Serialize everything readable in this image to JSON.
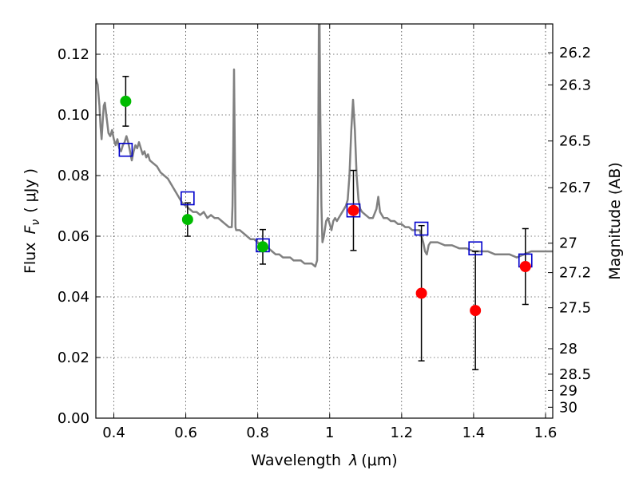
{
  "chart_data": {
    "type": "scatter",
    "xlabel_text": "Wavelength",
    "xlabel_symbol": "λ",
    "xlabel_unit": "(μm)",
    "ylabel_text": "Flux",
    "ylabel_symbol": "F",
    "ylabel_subscript": "ν",
    "ylabel_unit": "( μJy )",
    "y2label": "Magnitude (AB)",
    "xlim": [
      0.35,
      1.62
    ],
    "ylim": [
      0.0,
      0.13
    ],
    "grid": true,
    "x_ticks": [
      0.4,
      0.6,
      0.8,
      1.0,
      1.2,
      1.4,
      1.6
    ],
    "x_tick_labels": [
      "0.4",
      "0.6",
      "0.8",
      "1",
      "1.2",
      "1.4",
      "1.6"
    ],
    "y_ticks": [
      0.0,
      0.02,
      0.04,
      0.06,
      0.08,
      0.1,
      0.12
    ],
    "y_tick_labels": [
      "0.00",
      "0.02",
      "0.04",
      "0.06",
      "0.08",
      "0.10",
      "0.12"
    ],
    "y2_ticks": [
      {
        "label": "26.2",
        "flux": 0.1205
      },
      {
        "label": "26.3",
        "flux": 0.1099
      },
      {
        "label": "26.5",
        "flux": 0.0914
      },
      {
        "label": "26.7",
        "flux": 0.076
      },
      {
        "label": "27",
        "flux": 0.0577
      },
      {
        "label": "27.2",
        "flux": 0.048
      },
      {
        "label": "27.5",
        "flux": 0.0364
      },
      {
        "label": "28",
        "flux": 0.0229
      },
      {
        "label": "28.5",
        "flux": 0.0145
      },
      {
        "label": "29",
        "flux": 0.0091
      },
      {
        "label": "30",
        "flux": 0.0036
      }
    ],
    "colors": {
      "spectrum": "#808080",
      "green_points": "#00bb00",
      "red_points": "#ff0000",
      "model_squares": "#0000cc",
      "errorbars": "#000000"
    },
    "series": [
      {
        "kind": "line",
        "points": [
          [
            0.35,
            0.112
          ],
          [
            0.355,
            0.11
          ],
          [
            0.36,
            0.103
          ],
          [
            0.363,
            0.096
          ],
          [
            0.366,
            0.092
          ],
          [
            0.369,
            0.098
          ],
          [
            0.372,
            0.103
          ],
          [
            0.375,
            0.104
          ],
          [
            0.378,
            0.101
          ],
          [
            0.381,
            0.098
          ],
          [
            0.385,
            0.094
          ],
          [
            0.39,
            0.093
          ],
          [
            0.395,
            0.095
          ],
          [
            0.4,
            0.092
          ],
          [
            0.405,
            0.09
          ],
          [
            0.41,
            0.092
          ],
          [
            0.415,
            0.089
          ],
          [
            0.42,
            0.088
          ],
          [
            0.425,
            0.09
          ],
          [
            0.43,
            0.091
          ],
          [
            0.435,
            0.093
          ],
          [
            0.44,
            0.091
          ],
          [
            0.445,
            0.088
          ],
          [
            0.45,
            0.085
          ],
          [
            0.455,
            0.088
          ],
          [
            0.46,
            0.09
          ],
          [
            0.465,
            0.089
          ],
          [
            0.47,
            0.091
          ],
          [
            0.475,
            0.089
          ],
          [
            0.48,
            0.087
          ],
          [
            0.485,
            0.088
          ],
          [
            0.49,
            0.086
          ],
          [
            0.495,
            0.087
          ],
          [
            0.5,
            0.085
          ],
          [
            0.51,
            0.084
          ],
          [
            0.52,
            0.083
          ],
          [
            0.53,
            0.081
          ],
          [
            0.54,
            0.08
          ],
          [
            0.55,
            0.079
          ],
          [
            0.56,
            0.077
          ],
          [
            0.57,
            0.075
          ],
          [
            0.58,
            0.073
          ],
          [
            0.59,
            0.071
          ],
          [
            0.6,
            0.07
          ],
          [
            0.61,
            0.069
          ],
          [
            0.62,
            0.068
          ],
          [
            0.63,
            0.068
          ],
          [
            0.64,
            0.067
          ],
          [
            0.65,
            0.068
          ],
          [
            0.66,
            0.066
          ],
          [
            0.67,
            0.067
          ],
          [
            0.68,
            0.066
          ],
          [
            0.69,
            0.066
          ],
          [
            0.7,
            0.065
          ],
          [
            0.71,
            0.064
          ],
          [
            0.72,
            0.063
          ],
          [
            0.728,
            0.063
          ],
          [
            0.73,
            0.07
          ],
          [
            0.732,
            0.09
          ],
          [
            0.734,
            0.115
          ],
          [
            0.736,
            0.09
          ],
          [
            0.738,
            0.063
          ],
          [
            0.74,
            0.062
          ],
          [
            0.75,
            0.062
          ],
          [
            0.76,
            0.061
          ],
          [
            0.77,
            0.06
          ],
          [
            0.78,
            0.059
          ],
          [
            0.79,
            0.059
          ],
          [
            0.8,
            0.058
          ],
          [
            0.81,
            0.057
          ],
          [
            0.82,
            0.057
          ],
          [
            0.83,
            0.056
          ],
          [
            0.84,
            0.055
          ],
          [
            0.85,
            0.054
          ],
          [
            0.86,
            0.054
          ],
          [
            0.87,
            0.053
          ],
          [
            0.88,
            0.053
          ],
          [
            0.89,
            0.053
          ],
          [
            0.9,
            0.052
          ],
          [
            0.91,
            0.052
          ],
          [
            0.92,
            0.052
          ],
          [
            0.93,
            0.051
          ],
          [
            0.94,
            0.051
          ],
          [
            0.95,
            0.051
          ],
          [
            0.96,
            0.05
          ],
          [
            0.965,
            0.052
          ],
          [
            0.968,
            0.08
          ],
          [
            0.97,
            0.13
          ],
          [
            0.972,
            0.13
          ],
          [
            0.974,
            0.1
          ],
          [
            0.977,
            0.07
          ],
          [
            0.98,
            0.058
          ],
          [
            0.984,
            0.06
          ],
          [
            0.99,
            0.065
          ],
          [
            0.995,
            0.066
          ],
          [
            1.0,
            0.064
          ],
          [
            1.005,
            0.062
          ],
          [
            1.01,
            0.065
          ],
          [
            1.015,
            0.066
          ],
          [
            1.02,
            0.065
          ],
          [
            1.025,
            0.066
          ],
          [
            1.03,
            0.067
          ],
          [
            1.035,
            0.068
          ],
          [
            1.04,
            0.069
          ],
          [
            1.045,
            0.07
          ],
          [
            1.05,
            0.072
          ],
          [
            1.055,
            0.08
          ],
          [
            1.06,
            0.095
          ],
          [
            1.065,
            0.105
          ],
          [
            1.07,
            0.095
          ],
          [
            1.075,
            0.08
          ],
          [
            1.08,
            0.072
          ],
          [
            1.085,
            0.069
          ],
          [
            1.09,
            0.068
          ],
          [
            1.1,
            0.067
          ],
          [
            1.11,
            0.066
          ],
          [
            1.12,
            0.066
          ],
          [
            1.13,
            0.069
          ],
          [
            1.135,
            0.073
          ],
          [
            1.14,
            0.068
          ],
          [
            1.15,
            0.066
          ],
          [
            1.16,
            0.066
          ],
          [
            1.17,
            0.065
          ],
          [
            1.18,
            0.065
          ],
          [
            1.19,
            0.064
          ],
          [
            1.2,
            0.064
          ],
          [
            1.21,
            0.063
          ],
          [
            1.22,
            0.063
          ],
          [
            1.23,
            0.062
          ],
          [
            1.24,
            0.062
          ],
          [
            1.25,
            0.062
          ],
          [
            1.255,
            0.06
          ],
          [
            1.26,
            0.058
          ],
          [
            1.265,
            0.055
          ],
          [
            1.27,
            0.054
          ],
          [
            1.275,
            0.057
          ],
          [
            1.28,
            0.058
          ],
          [
            1.29,
            0.058
          ],
          [
            1.3,
            0.058
          ],
          [
            1.32,
            0.057
          ],
          [
            1.34,
            0.057
          ],
          [
            1.36,
            0.056
          ],
          [
            1.38,
            0.056
          ],
          [
            1.4,
            0.055
          ],
          [
            1.42,
            0.055
          ],
          [
            1.44,
            0.055
          ],
          [
            1.46,
            0.054
          ],
          [
            1.48,
            0.054
          ],
          [
            1.5,
            0.054
          ],
          [
            1.52,
            0.053
          ],
          [
            1.54,
            0.054
          ],
          [
            1.56,
            0.055
          ],
          [
            1.58,
            0.055
          ],
          [
            1.6,
            0.055
          ],
          [
            1.62,
            0.055
          ]
        ]
      },
      {
        "kind": "points",
        "color": "green",
        "x": [
          0.433,
          0.605,
          0.814
        ],
        "y": [
          0.1045,
          0.0655,
          0.0565
        ],
        "yerr": [
          0.0082,
          0.0055,
          0.0057
        ]
      },
      {
        "kind": "points",
        "color": "red",
        "x": [
          1.066,
          1.255,
          1.405,
          1.544
        ],
        "y": [
          0.0685,
          0.0412,
          0.0355,
          0.05
        ],
        "yerr": [
          0.0132,
          0.0223,
          0.0195,
          0.0125
        ]
      },
      {
        "kind": "squares",
        "color": "blue",
        "x": [
          0.433,
          0.605,
          0.814,
          1.066,
          1.255,
          1.405,
          1.544
        ],
        "y": [
          0.0885,
          0.0725,
          0.057,
          0.0685,
          0.0625,
          0.056,
          0.052
        ]
      }
    ]
  }
}
